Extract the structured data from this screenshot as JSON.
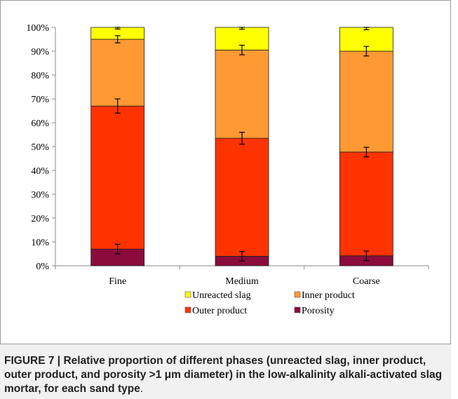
{
  "chart_data": {
    "type": "bar",
    "stacked": true,
    "percent": true,
    "categories": [
      "Fine",
      "Medium",
      "Coarse"
    ],
    "series": [
      {
        "name": "Porosity",
        "color": "#8b0b3c",
        "values": [
          7,
          4,
          4.2
        ],
        "errors": [
          2,
          2,
          2
        ]
      },
      {
        "name": "Outer product",
        "color": "#ff3300",
        "values": [
          60,
          49.5,
          43.5
        ],
        "errors": [
          3,
          2.5,
          2
        ]
      },
      {
        "name": "Inner product",
        "color": "#ff9933",
        "values": [
          28,
          37,
          42.3
        ],
        "errors": [
          1.5,
          2,
          2
        ]
      },
      {
        "name": "Unreacted slag",
        "color": "#ffff00",
        "values": [
          5,
          9.5,
          10
        ],
        "errors": [
          0.7,
          0.8,
          1
        ]
      }
    ],
    "ylim": [
      0,
      100
    ],
    "yticks": [
      "0%",
      "10%",
      "20%",
      "30%",
      "40%",
      "50%",
      "60%",
      "70%",
      "80%",
      "90%",
      "100%"
    ],
    "legend_order": [
      "Unreacted slag",
      "Inner product",
      "Outer product",
      "Porosity"
    ],
    "legend_position": "bottom",
    "grid": false
  },
  "caption": {
    "label": "FIGURE 7 | ",
    "text": "Relative proportion of different phases (unreacted slag, inner product, outer product, and porosity >1 μm diameter) in the low-alkalinity alkali-activated slag mortar, for each sand type",
    "end": "."
  }
}
